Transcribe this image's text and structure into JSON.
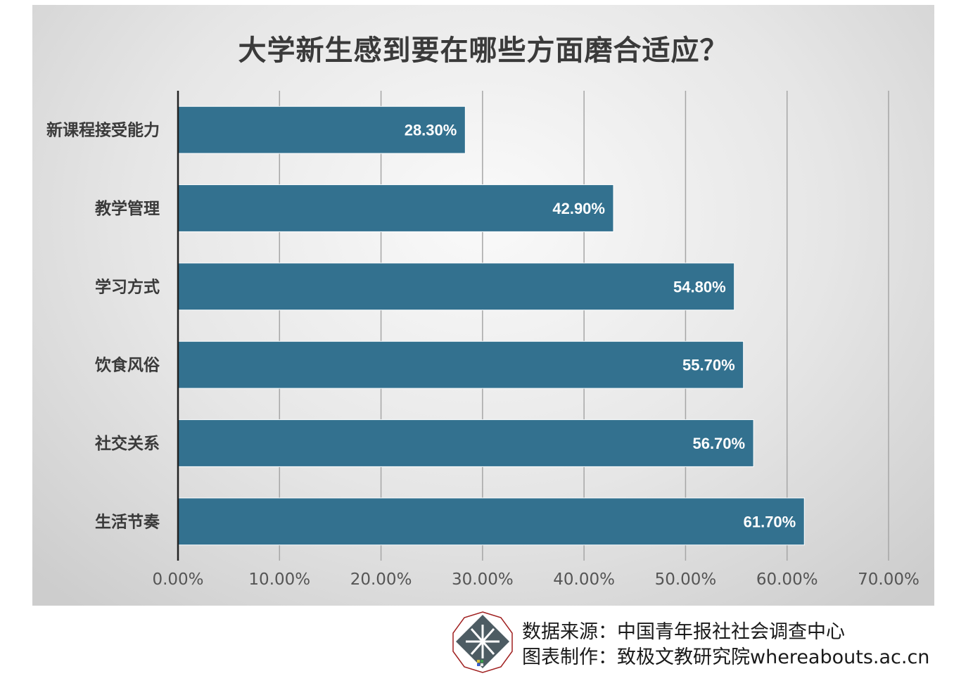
{
  "chart_data": {
    "type": "bar",
    "orientation": "horizontal",
    "title": "大学新生感到要在哪些方面磨合适应？",
    "categories": [
      "新课程接受能力",
      "教学管理",
      "学习方式",
      "饮食风俗",
      "社交关系",
      "生活节奏"
    ],
    "values": [
      28.3,
      42.9,
      54.8,
      55.7,
      56.7,
      61.7
    ],
    "data_labels": [
      "28.30%",
      "42.90%",
      "54.80%",
      "55.70%",
      "56.70%",
      "61.70%"
    ],
    "xlim": [
      0,
      70
    ],
    "x_ticks": [
      0,
      10,
      20,
      30,
      40,
      50,
      60,
      70
    ],
    "x_tick_labels": [
      "0.00%",
      "10.00%",
      "20.00%",
      "30.00%",
      "40.00%",
      "50.00%",
      "60.00%",
      "70.00%"
    ],
    "grid": "vertical",
    "bar_color": "#33718f"
  },
  "footer": {
    "source_line": "数据来源：中国青年报社社会调查中心",
    "credit_line": "图表制作：致极文教研究院whereabouts.ac.cn",
    "logo_icon": "whereabouts-logo-icon"
  }
}
